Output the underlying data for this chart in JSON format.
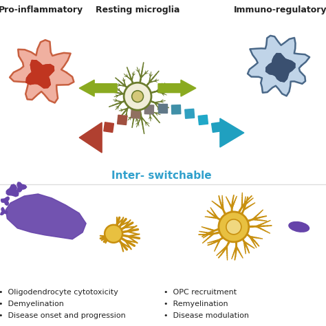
{
  "bg_color": "#ffffff",
  "title_top": "Resting microglia",
  "title_left": "Pro-inflammatory",
  "title_right": "Immuno-regulatory",
  "inter_switchable": "Inter- switchable",
  "bullet_left": [
    "Oligodendrocyte cytotoxicity",
    "Demyelination",
    "Disease onset and progression"
  ],
  "bullet_right": [
    "OPC recruitment",
    "Remyelination",
    "Disease modulation"
  ],
  "olive_green": "#6b7c2e",
  "olive_light": "#8a9a40",
  "cream": "#f0edd8",
  "cream_nuc": "#d4c87a",
  "red_cell_outer": "#f0b0a0",
  "red_cell_edge": "#c86040",
  "red_cell_inner": "#c03520",
  "blue_cell_outer": "#c0d4e8",
  "blue_cell_edge": "#4a6888",
  "blue_cell_inner": "#3a5070",
  "arrow_green": "#8aaa20",
  "arrow_left_color": "#b04030",
  "arrow_right_color": "#20a0c0",
  "purple_cell": "#6644aa",
  "golden": "#c89010",
  "golden_center": "#e8c040",
  "golden_light": "#f0d880",
  "text_blue": "#30a0cc",
  "text_black": "#222222"
}
